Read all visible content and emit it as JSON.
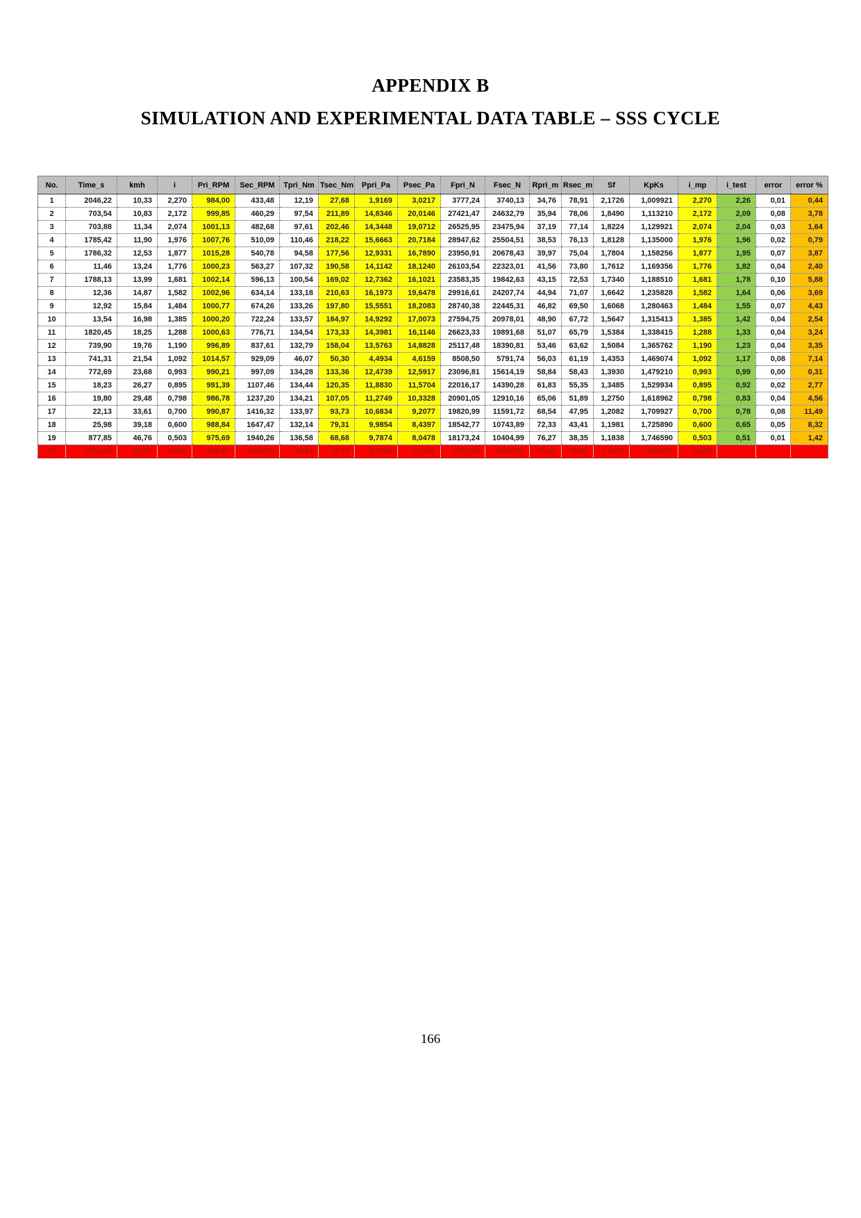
{
  "page": {
    "title": "APPENDIX B",
    "subtitle": "SIMULATION AND EXPERIMENTAL DATA TABLE – SSS CYCLE",
    "page_number": "166"
  },
  "colors": {
    "header_bg": "#bfbfbf",
    "highlight_yellow": "#ffff00",
    "highlight_green": "#92d050",
    "highlight_orange": "#ffc000",
    "last_row_bg": "#ff0000",
    "last_row_text": "#a61c00"
  },
  "table": {
    "columns": [
      "No.",
      "Time_s",
      "kmh",
      "i",
      "Pri_RPM",
      "Sec_RPM",
      "Tpri_Nm",
      "Tsec_Nm",
      "Ppri_Pa",
      "Psec_Pa",
      "Fpri_N",
      "Fsec_N",
      "Rpri_m",
      "Rsec_m",
      "Sf",
      "KpKs",
      "i_mp",
      "i_test",
      "error",
      "error %"
    ],
    "column_fills": {
      "4": "yellow",
      "7": "yellow",
      "8": "yellow",
      "9": "yellow",
      "16": "yellow",
      "17": "green",
      "19": "orange"
    },
    "rows": [
      [
        "1",
        "2046,22",
        "10,33",
        "2,270",
        "984,00",
        "433,48",
        "12,19",
        "27,68",
        "1,9169",
        "3,0217",
        "3777,24",
        "3740,13",
        "34,76",
        "78,91",
        "2,1726",
        "1,009921",
        "2,270",
        "2,26",
        "0,01",
        "0,44"
      ],
      [
        "2",
        "703,54",
        "10,83",
        "2,172",
        "999,85",
        "460,29",
        "97,54",
        "211,89",
        "14,8346",
        "20,0146",
        "27421,47",
        "24632,79",
        "35,94",
        "78,06",
        "1,8490",
        "1,113210",
        "2,172",
        "2,09",
        "0,08",
        "3,78"
      ],
      [
        "3",
        "703,88",
        "11,34",
        "2,074",
        "1001,13",
        "482,68",
        "97,61",
        "202,46",
        "14,3448",
        "19,0712",
        "26525,95",
        "23475,94",
        "37,19",
        "77,14",
        "1,8224",
        "1,129921",
        "2,074",
        "2,04",
        "0,03",
        "1,64"
      ],
      [
        "4",
        "1785,42",
        "11,90",
        "1,976",
        "1007,76",
        "510,09",
        "110,46",
        "218,22",
        "15,6663",
        "20,7184",
        "28947,62",
        "25504,51",
        "38,53",
        "76,13",
        "1,8128",
        "1,135000",
        "1,976",
        "1,96",
        "0,02",
        "0,79"
      ],
      [
        "5",
        "1786,32",
        "12,53",
        "1,877",
        "1015,28",
        "540,78",
        "94,58",
        "177,56",
        "12,9331",
        "16,7890",
        "23950,91",
        "20678,43",
        "39,97",
        "75,04",
        "1,7804",
        "1,158256",
        "1,877",
        "1,95",
        "0,07",
        "3,87"
      ],
      [
        "6",
        "11,46",
        "13,24",
        "1,776",
        "1000,23",
        "563,27",
        "107,32",
        "190,58",
        "14,1142",
        "18,1240",
        "26103,54",
        "22323,01",
        "41,56",
        "73,80",
        "1,7612",
        "1,169356",
        "1,776",
        "1,82",
        "0,04",
        "2,40"
      ],
      [
        "7",
        "1788,13",
        "13,99",
        "1,681",
        "1002,14",
        "596,13",
        "100,54",
        "169,02",
        "12,7362",
        "16,1021",
        "23583,35",
        "19842,63",
        "43,15",
        "72,53",
        "1,7340",
        "1,188510",
        "1,681",
        "1,78",
        "0,10",
        "5,88"
      ],
      [
        "8",
        "12,36",
        "14,87",
        "1,582",
        "1002,96",
        "634,14",
        "133,18",
        "210,63",
        "16,1973",
        "19,6478",
        "29916,61",
        "24207,74",
        "44,94",
        "71,07",
        "1,6642",
        "1,235828",
        "1,582",
        "1,64",
        "0,06",
        "3,69"
      ],
      [
        "9",
        "12,92",
        "15,84",
        "1,484",
        "1000,77",
        "674,26",
        "133,26",
        "197,80",
        "15,5551",
        "18,2083",
        "28740,38",
        "22445,31",
        "46,82",
        "69,50",
        "1,6068",
        "1,280463",
        "1,484",
        "1,55",
        "0,07",
        "4,43"
      ],
      [
        "10",
        "13,54",
        "16,98",
        "1,385",
        "1000,20",
        "722,24",
        "133,57",
        "184,97",
        "14,9292",
        "17,0073",
        "27594,75",
        "20978,01",
        "48,90",
        "67,72",
        "1,5647",
        "1,315413",
        "1,385",
        "1,42",
        "0,04",
        "2,54"
      ],
      [
        "11",
        "1820,45",
        "18,25",
        "1,288",
        "1000,63",
        "776,71",
        "134,54",
        "173,33",
        "14,3981",
        "16,1146",
        "26623,33",
        "19891,68",
        "51,07",
        "65,79",
        "1,5384",
        "1,338415",
        "1,288",
        "1,33",
        "0,04",
        "3,24"
      ],
      [
        "12",
        "739,90",
        "19,76",
        "1,190",
        "996,89",
        "837,61",
        "132,79",
        "158,04",
        "13,5763",
        "14,8828",
        "25117,48",
        "18390,81",
        "53,46",
        "63,62",
        "1,5084",
        "1,365762",
        "1,190",
        "1,23",
        "0,04",
        "3,35"
      ],
      [
        "13",
        "741,31",
        "21,54",
        "1,092",
        "1014,57",
        "929,09",
        "46,07",
        "50,30",
        "4,4934",
        "4,6159",
        "8508,50",
        "5791,74",
        "56,03",
        "61,19",
        "1,4353",
        "1,469074",
        "1,092",
        "1,17",
        "0,08",
        "7,14"
      ],
      [
        "14",
        "772,69",
        "23,68",
        "0,993",
        "990,21",
        "997,09",
        "134,28",
        "133,36",
        "12,4739",
        "12,5917",
        "23096,81",
        "15614,19",
        "58,84",
        "58,43",
        "1,3930",
        "1,479210",
        "0,993",
        "0,99",
        "0,00",
        "0,31"
      ],
      [
        "15",
        "18,23",
        "26,27",
        "0,895",
        "991,39",
        "1107,46",
        "134,44",
        "120,35",
        "11,8830",
        "11,5704",
        "22016,17",
        "14390,28",
        "61,83",
        "55,35",
        "1,3485",
        "1,529934",
        "0,895",
        "0,92",
        "0,02",
        "2,77"
      ],
      [
        "16",
        "19,80",
        "29,48",
        "0,798",
        "986,78",
        "1237,20",
        "134,21",
        "107,05",
        "11,2749",
        "10,3328",
        "20901,05",
        "12910,16",
        "65,06",
        "51,89",
        "1,2750",
        "1,618962",
        "0,798",
        "0,83",
        "0,04",
        "4,56"
      ],
      [
        "17",
        "22,13",
        "33,61",
        "0,700",
        "990,87",
        "1416,32",
        "133,97",
        "93,73",
        "10,6834",
        "9,2077",
        "19820,99",
        "11591,72",
        "68,54",
        "47,95",
        "1,2082",
        "1,709927",
        "0,700",
        "0,78",
        "0,08",
        "11,49"
      ],
      [
        "18",
        "25,98",
        "39,18",
        "0,600",
        "988,84",
        "1647,47",
        "132,14",
        "79,31",
        "9,9854",
        "8,4397",
        "18542,77",
        "10743,89",
        "72,33",
        "43,41",
        "1,1981",
        "1,725890",
        "0,600",
        "0,65",
        "0,05",
        "8,32"
      ],
      [
        "19",
        "877,85",
        "46,76",
        "0,503",
        "975,69",
        "1940,26",
        "136,58",
        "68,68",
        "9,7874",
        "8,0478",
        "18173,24",
        "10404,99",
        "76,27",
        "38,35",
        "1,1838",
        "1,746590",
        "0,503",
        "0,51",
        "0,01",
        "1,42"
      ],
      [
        "20",
        "1993,43",
        "53,07",
        "0,405",
        "999,67",
        "2468,56",
        "48,64",
        "19,70",
        "3,5226",
        "2,3302",
        "6723,90",
        "3693,05",
        "75,46",
        "30,56",
        "1,1674",
        "1,820691",
        "0,405",
        "",
        "",
        ""
      ]
    ],
    "last_row_highlight": "red"
  }
}
